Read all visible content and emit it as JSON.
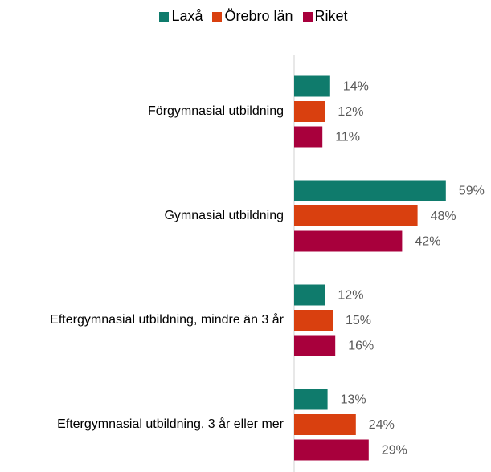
{
  "chart_data": {
    "type": "hbar",
    "categories": [
      "Förgymnasial utbildning",
      "Gymnasial utbildning",
      "Eftergymnasial utbildning, mindre än 3 år",
      "Eftergymnasial utbildning, 3 år eller mer"
    ],
    "series": [
      {
        "name": "Laxå",
        "color": "#0f7b6c",
        "values": [
          14,
          59,
          12,
          13
        ],
        "value_labels": [
          "14%",
          "59%",
          "12%",
          "13%"
        ]
      },
      {
        "name": "Örebro län",
        "color": "#d9400f",
        "values": [
          12,
          48,
          15,
          24
        ],
        "value_labels": [
          "12%",
          "48%",
          "15%",
          "24%"
        ]
      },
      {
        "name": "Riket",
        "color": "#a8003c",
        "values": [
          11,
          42,
          16,
          29
        ],
        "value_labels": [
          "11%",
          "42%",
          "16%",
          "29%"
        ]
      }
    ],
    "xlim": [
      0,
      60
    ],
    "legend": "top"
  }
}
